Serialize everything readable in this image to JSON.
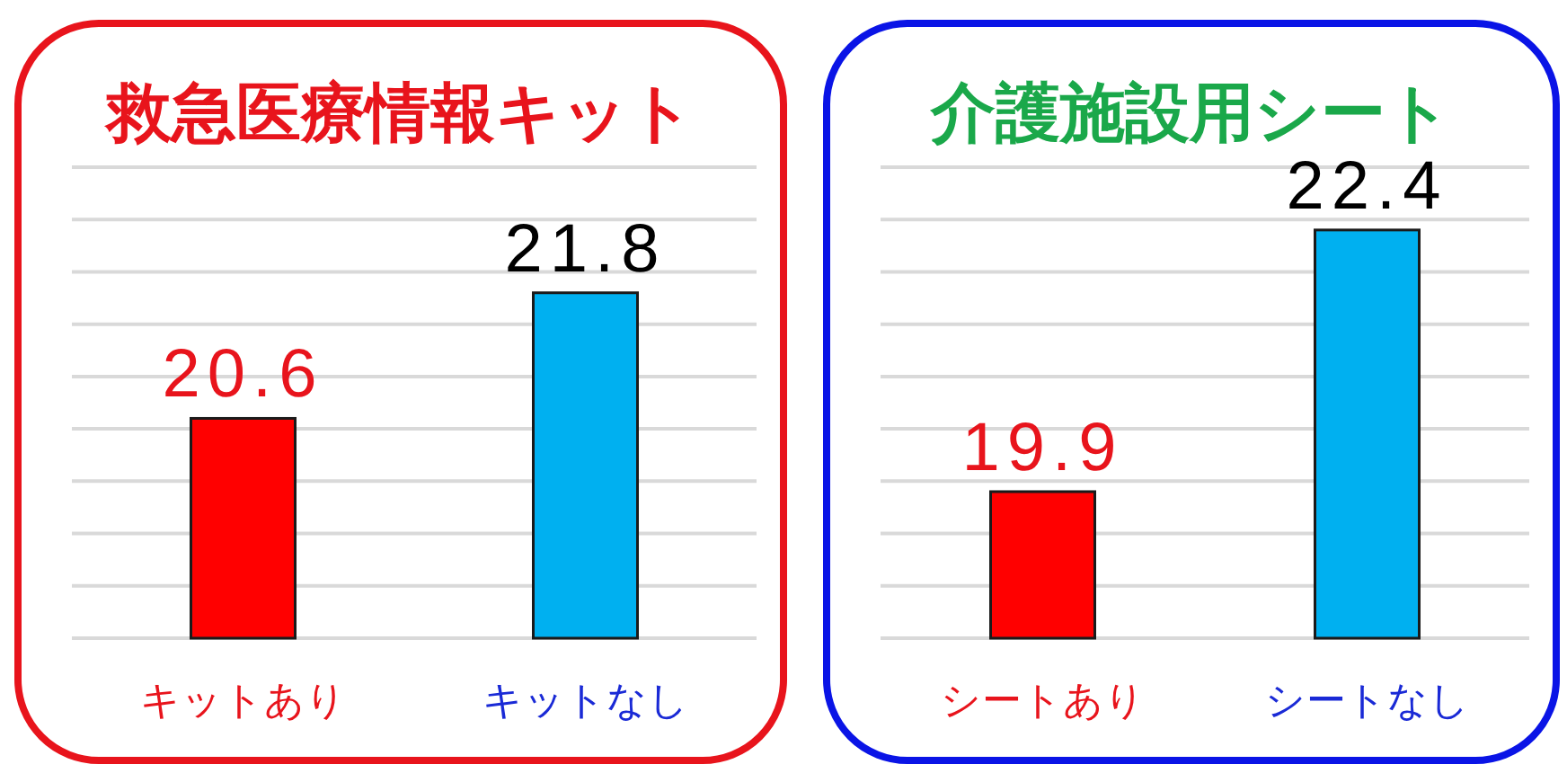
{
  "chart_data": [
    {
      "type": "bar",
      "title": "救急医療情報キット",
      "categories": [
        "キットあり",
        "キットなし"
      ],
      "values": [
        20.6,
        21.8
      ],
      "colors": [
        "#ff0000",
        "#00b0f0"
      ],
      "ylim": [
        18.5,
        23
      ],
      "yticks": [
        {
          "value": 18.5,
          "label": null
        },
        {
          "value": 19,
          "label": null
        },
        {
          "value": 19.5,
          "label": null
        },
        {
          "value": 20,
          "label": null
        },
        {
          "value": 20.5,
          "label": null
        },
        {
          "value": 21,
          "label": null
        },
        {
          "value": 21.5,
          "label": null
        },
        {
          "value": 22,
          "label": null
        },
        {
          "value": 22.5,
          "label": null
        },
        {
          "value": 23,
          "label": null
        }
      ],
      "grid": "y",
      "data_labels": true,
      "tick_labels": "x"
    },
    {
      "type": "bar",
      "title": "介護施設用シート",
      "categories": [
        "シートあり",
        "シートなし"
      ],
      "values": [
        19.9,
        22.4
      ],
      "colors": [
        "#ff0000",
        "#00b0f0"
      ],
      "ylim": [
        18.5,
        23
      ],
      "yticks": [
        {
          "value": 18.5,
          "label": null
        },
        {
          "value": 19,
          "label": null
        },
        {
          "value": 19.5,
          "label": null
        },
        {
          "value": 20,
          "label": null
        },
        {
          "value": 20.5,
          "label": null
        },
        {
          "value": 21,
          "label": null
        },
        {
          "value": 21.5,
          "label": null
        },
        {
          "value": 22,
          "label": null
        },
        {
          "value": 22.5,
          "label": null
        },
        {
          "value": 23,
          "label": null
        }
      ],
      "grid": "y",
      "data_labels": true,
      "tick_labels": "x"
    }
  ]
}
